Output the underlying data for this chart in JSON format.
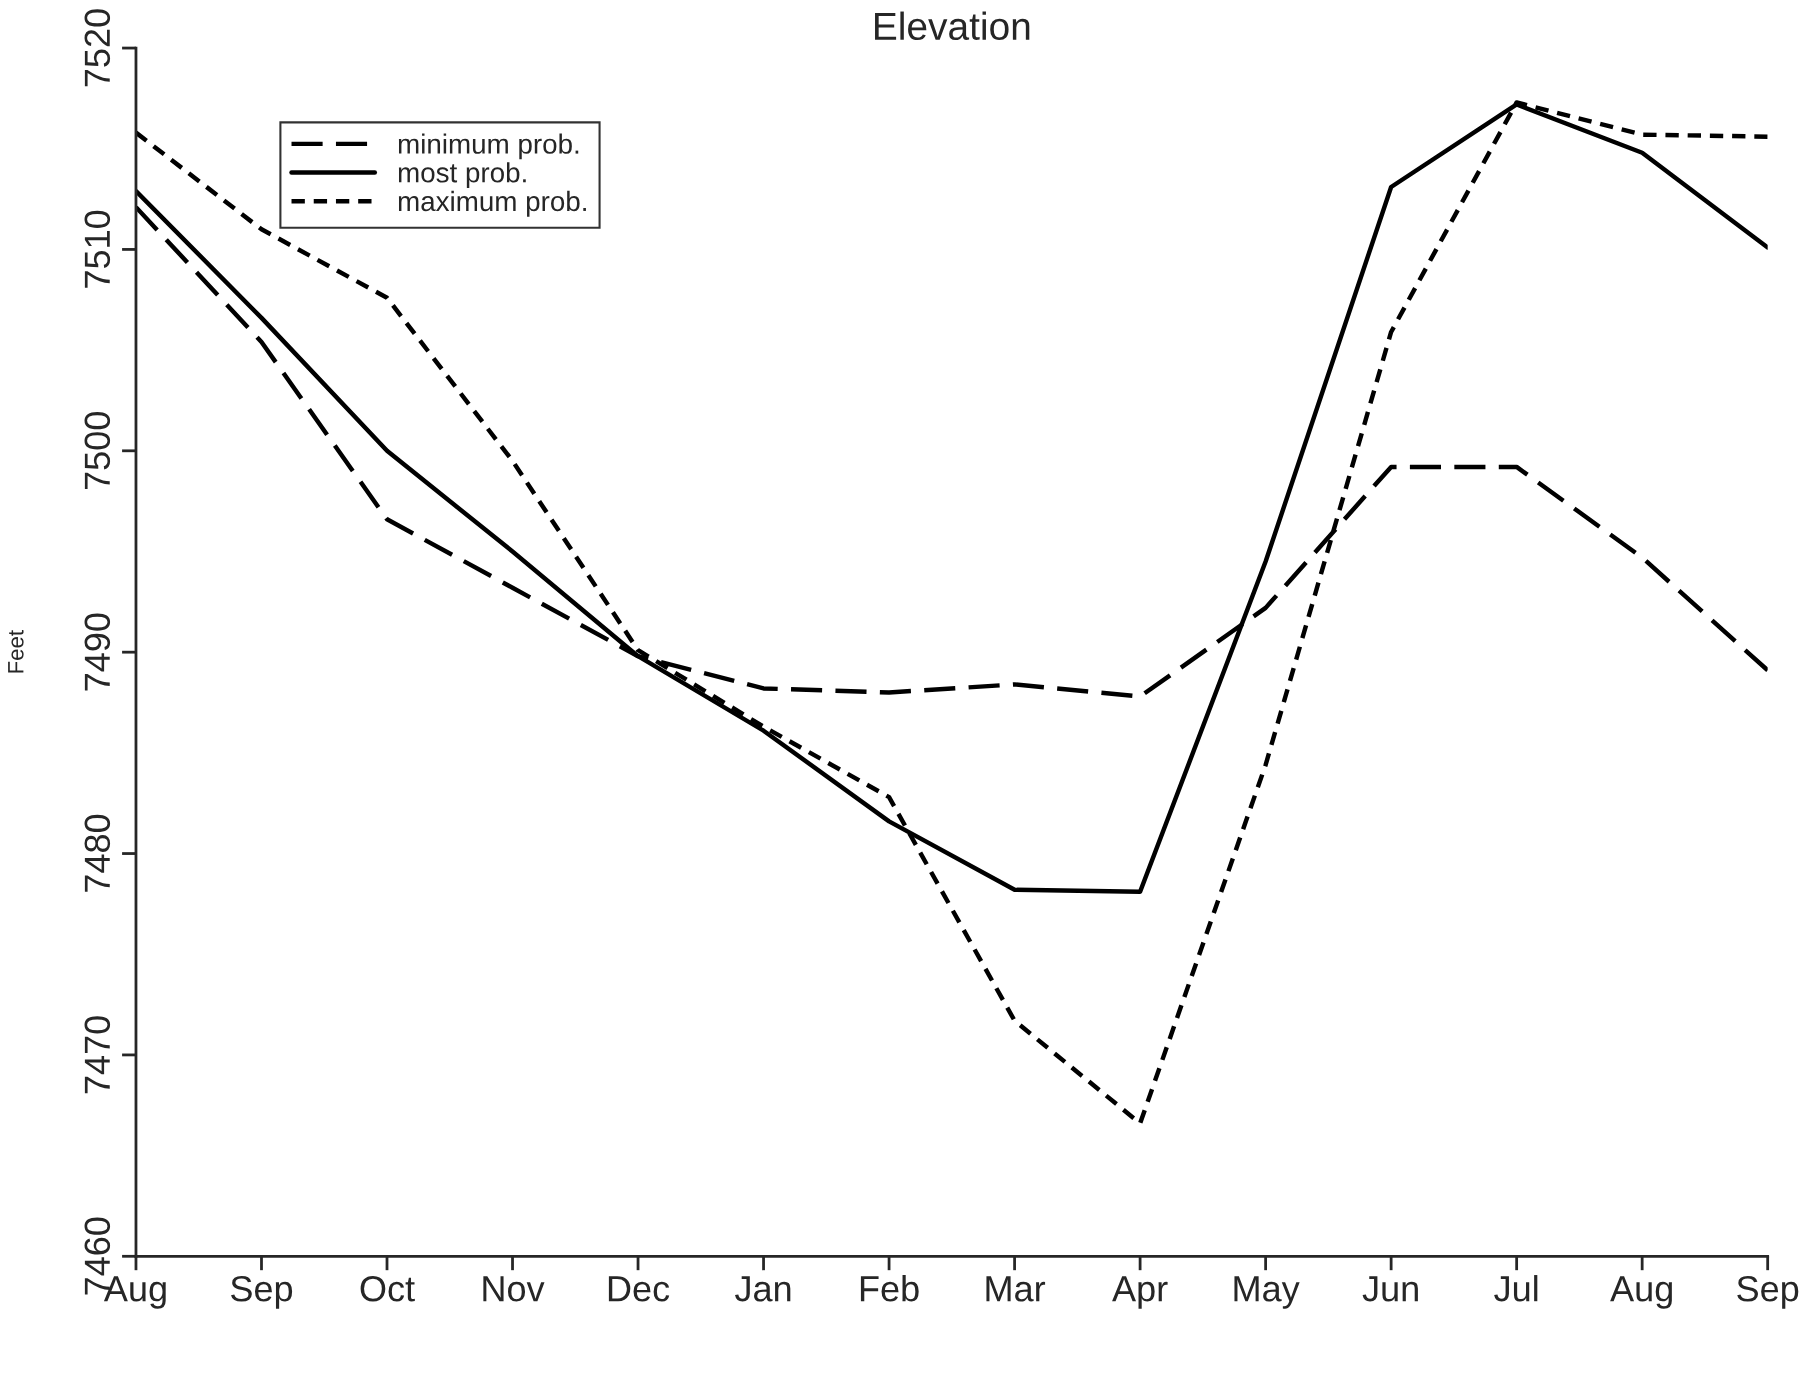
{
  "chart_data": {
    "type": "line",
    "title": "Elevation",
    "ylabel": "Feet",
    "categories": [
      "Aug",
      "Sep",
      "Oct",
      "Nov",
      "Dec",
      "Jan",
      "Feb",
      "Mar",
      "Apr",
      "May",
      "Jun",
      "Jul",
      "Aug",
      "Sep"
    ],
    "series": [
      {
        "name": "minimum prob.",
        "color": "#000000",
        "line_style": "dashed",
        "values": [
          7512.1,
          7505.4,
          7496.6,
          7493.2,
          7489.8,
          7488.2,
          7488.0,
          7488.4,
          7487.8,
          7492.2,
          7499.2,
          7499.2,
          7494.7,
          7489.1
        ]
      },
      {
        "name": "most prob.",
        "color": "#000000",
        "line_style": "solid",
        "values": [
          7512.9,
          7506.6,
          7500.0,
          7495.0,
          7489.8,
          7486.1,
          7481.6,
          7478.2,
          7478.1,
          7494.5,
          7513.1,
          7517.2,
          7514.8,
          7510.1
        ]
      },
      {
        "name": "maximum prob.",
        "color": "#000000",
        "line_style": "dotted",
        "values": [
          7515.8,
          7511.0,
          7507.6,
          7499.5,
          7490.1,
          7486.3,
          7482.8,
          7471.7,
          7466.6,
          7484.4,
          7505.9,
          7517.3,
          7515.7,
          7515.6
        ]
      }
    ],
    "ylim": [
      7460,
      7520
    ],
    "yticks": [
      7460,
      7470,
      7480,
      7490,
      7500,
      7510,
      7520
    ],
    "grid": false,
    "legend": "top left",
    "marker": "none"
  }
}
